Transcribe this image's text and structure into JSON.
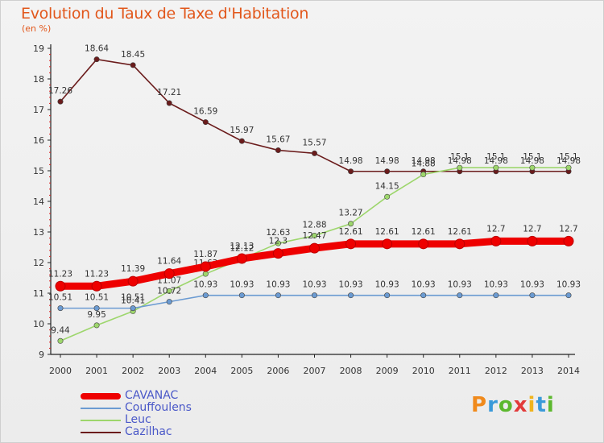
{
  "header": {
    "title": "Evolution du Taux de Taxe d'Habitation",
    "unit": "(en %)"
  },
  "logo": {
    "text": "Proxiti",
    "colors": [
      "#f08a1c",
      "#3a9ad9",
      "#5cb82e",
      "#e23a3a",
      "#f0b41c",
      "#3a9ad9",
      "#5cb82e"
    ]
  },
  "chart_data": {
    "type": "line",
    "x": [
      "2000",
      "2001",
      "2002",
      "2003",
      "2004",
      "2005",
      "2006",
      "2007",
      "2008",
      "2009",
      "2010",
      "2011",
      "2012",
      "2013",
      "2014"
    ],
    "ylim": [
      9,
      19
    ],
    "yticks": [
      9,
      10,
      11,
      12,
      13,
      14,
      15,
      16,
      17,
      18,
      19
    ],
    "grid": false,
    "legend": "bottom-left",
    "series": [
      {
        "name": "Cazilhac",
        "color": "#6b1c1c",
        "values": [
          17.26,
          18.64,
          18.45,
          17.21,
          16.59,
          15.97,
          15.67,
          15.57,
          14.98,
          14.98,
          14.98,
          14.98,
          14.98,
          14.98,
          14.98
        ],
        "labels": [
          "17.26",
          "18.64",
          "18.45",
          "17.21",
          "16.59",
          "15.97",
          "15.67",
          "15.57",
          "14.98",
          "14.98",
          "14.98",
          "14.98",
          "14.98",
          "14.98",
          "14.98"
        ]
      },
      {
        "name": "Leuc",
        "color": "#9dd66c",
        "values": [
          9.44,
          9.95,
          10.41,
          11.07,
          11.63,
          12.12,
          12.63,
          12.88,
          13.27,
          14.15,
          14.88,
          15.1,
          15.1,
          15.1,
          15.1
        ],
        "labels": [
          "9.44",
          "9.95",
          "10.41",
          "11.07",
          "11.63",
          "12.12",
          "12.63",
          "12.88",
          "13.27",
          "14.15",
          "14.88",
          "15.1",
          "15.1",
          "15.1",
          "15.1"
        ]
      },
      {
        "name": "Couffoulens",
        "color": "#6b9bd2",
        "values": [
          10.51,
          10.51,
          10.51,
          10.72,
          10.93,
          10.93,
          10.93,
          10.93,
          10.93,
          10.93,
          10.93,
          10.93,
          10.93,
          10.93,
          10.93
        ],
        "labels": [
          "10.51",
          "10.51",
          "10.51",
          "10.72",
          "10.93",
          "10.93",
          "10.93",
          "10.93",
          "10.93",
          "10.93",
          "10.93",
          "10.93",
          "10.93",
          "10.93",
          "10.93"
        ]
      },
      {
        "name": "CAVANAC",
        "color": "#ee0000",
        "values": [
          11.23,
          11.23,
          11.39,
          11.64,
          11.87,
          12.13,
          12.3,
          12.47,
          12.61,
          12.61,
          12.61,
          12.61,
          12.7,
          12.7,
          12.7
        ],
        "labels": [
          "11.23",
          "11.23",
          "11.39",
          "11.64",
          "11.87",
          "12.13",
          "12.3",
          "12.47",
          "12.61",
          "12.61",
          "12.61",
          "12.61",
          "12.7",
          "12.7",
          "12.7"
        ]
      }
    ]
  }
}
